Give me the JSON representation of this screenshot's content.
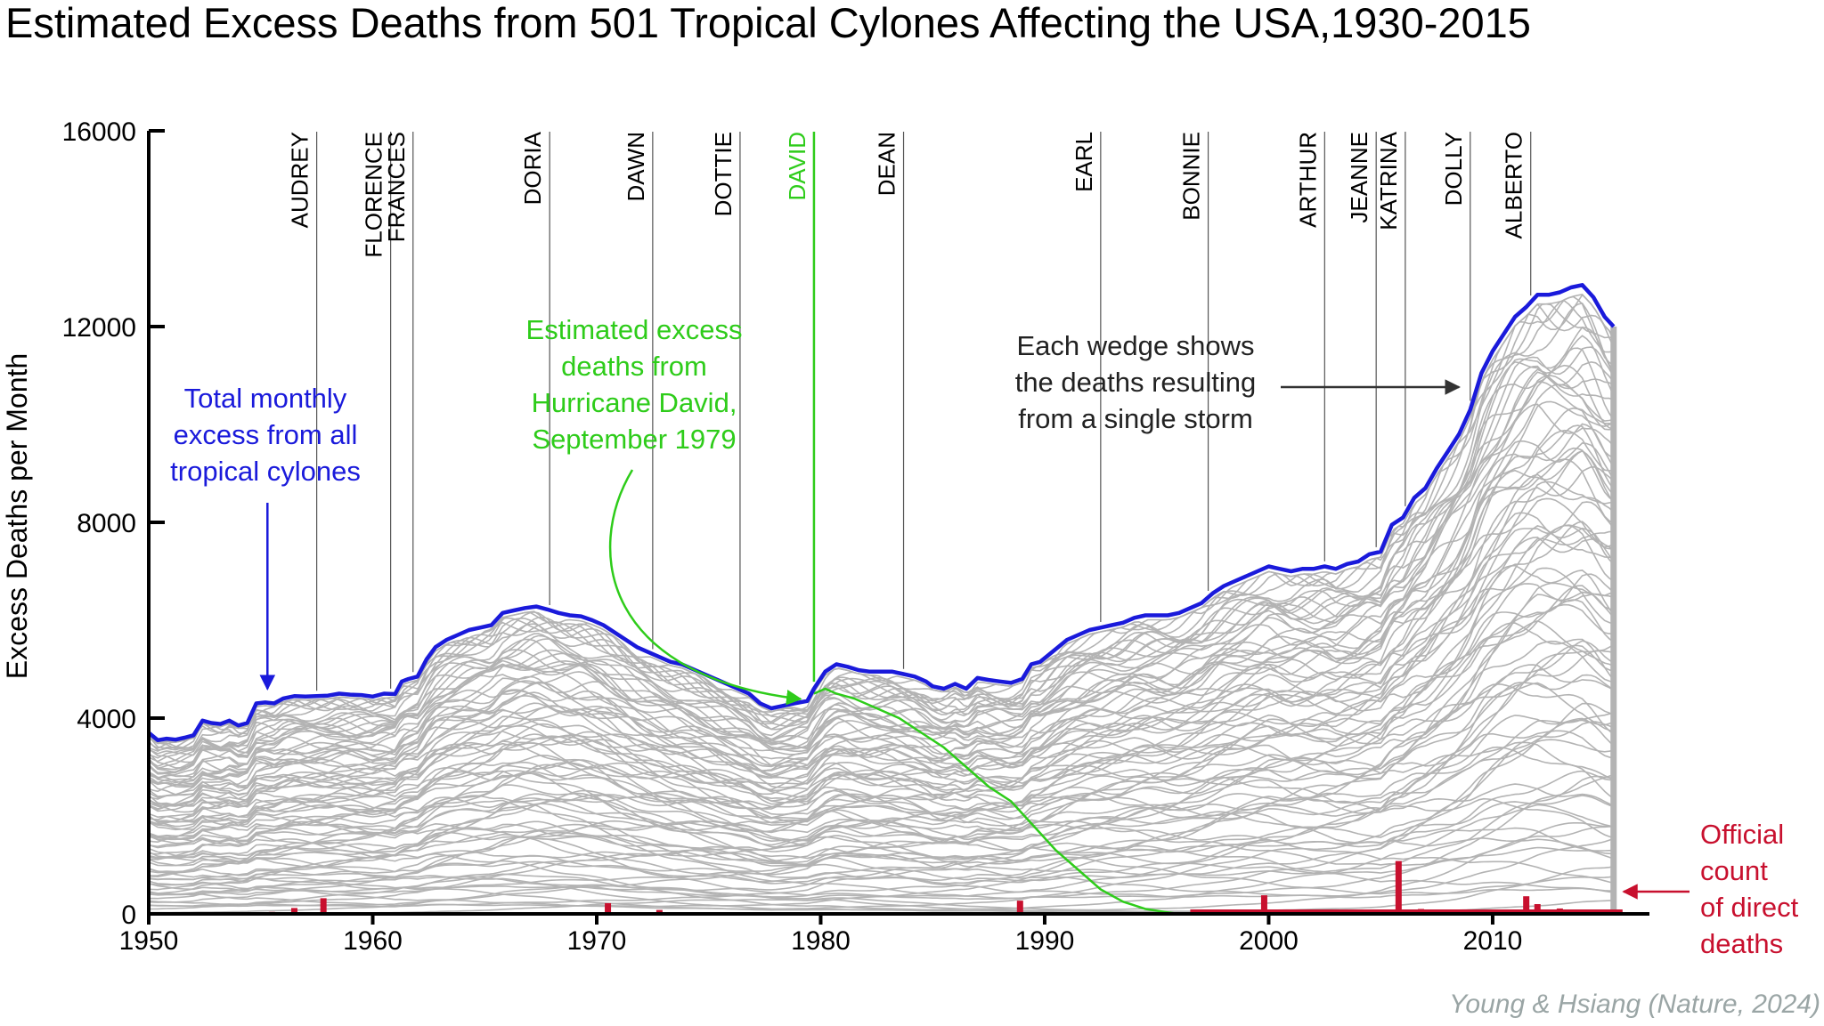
{
  "chart_data": {
    "type": "area",
    "title": "Estimated Excess Deaths from 501 Tropical Cylones Affecting the USA,1930-2015",
    "ylabel": "Excess Deaths per Month",
    "xlabel": "",
    "xlim": [
      1950,
      2017
    ],
    "ylim": [
      0,
      16000
    ],
    "x_ticks": [
      1950,
      1960,
      1970,
      1980,
      1990,
      2000,
      2010
    ],
    "y_ticks": [
      0,
      4000,
      8000,
      12000,
      16000
    ],
    "colors": {
      "total": "#1a1adb",
      "storms": "#b3b3b3",
      "highlight": "#2ecc1a",
      "official": "#c8102e",
      "axis": "#000000",
      "source": "#9aa5a5"
    },
    "series": [
      {
        "name": "Total monthly excess from all tropical cylones",
        "x": [
          1950,
          1950.4,
          1950.8,
          1951.2,
          1951.6,
          1952.0,
          1952.4,
          1952.8,
          1953.2,
          1953.6,
          1954.0,
          1954.4,
          1954.8,
          1955.2,
          1955.6,
          1956.0,
          1956.5,
          1957.0,
          1957.5,
          1958.0,
          1958.5,
          1959.0,
          1959.5,
          1960.0,
          1960.5,
          1961.0,
          1961.3,
          1961.6,
          1962.0,
          1962.4,
          1962.8,
          1963.3,
          1963.8,
          1964.3,
          1964.8,
          1965.3,
          1965.8,
          1966.3,
          1966.8,
          1967.3,
          1967.8,
          1968.3,
          1968.8,
          1969.3,
          1969.8,
          1970.3,
          1970.8,
          1971.3,
          1971.8,
          1972.3,
          1972.8,
          1973.3,
          1973.8,
          1974.3,
          1974.8,
          1975.3,
          1975.8,
          1976.3,
          1976.8,
          1977.3,
          1977.8,
          1978.3,
          1978.8,
          1979.4,
          1979.7,
          1980.2,
          1980.7,
          1981.2,
          1981.7,
          1982.2,
          1982.7,
          1983.2,
          1983.7,
          1984.2,
          1984.7,
          1985.0,
          1985.5,
          1986.0,
          1986.5,
          1987.0,
          1987.5,
          1988.0,
          1988.5,
          1989.0,
          1989.4,
          1989.8,
          1990.2,
          1990.6,
          1991.0,
          1991.5,
          1992.0,
          1992.5,
          1993.0,
          1993.5,
          1994.0,
          1994.5,
          1995.0,
          1995.5,
          1996.0,
          1996.5,
          1997.0,
          1997.5,
          1998.0,
          1998.5,
          1999.0,
          1999.5,
          2000.0,
          2000.5,
          2001.0,
          2001.5,
          2002.0,
          2002.5,
          2003.0,
          2003.5,
          2004.0,
          2004.5,
          2005.0,
          2005.5,
          2006.0,
          2006.5,
          2007.0,
          2007.5,
          2008.0,
          2008.5,
          2009.0,
          2009.5,
          2010.0,
          2010.5,
          2011.0,
          2011.5,
          2012.0,
          2012.5,
          2013.0,
          2013.5,
          2014.0,
          2014.5,
          2015.0,
          2015.4
        ],
        "y": [
          3700,
          3550,
          3580,
          3560,
          3600,
          3650,
          3950,
          3900,
          3880,
          3950,
          3850,
          3900,
          4300,
          4320,
          4300,
          4400,
          4450,
          4440,
          4450,
          4460,
          4500,
          4480,
          4470,
          4440,
          4500,
          4490,
          4750,
          4800,
          4850,
          5200,
          5450,
          5600,
          5700,
          5800,
          5850,
          5900,
          6150,
          6200,
          6250,
          6280,
          6220,
          6150,
          6100,
          6080,
          6000,
          5900,
          5750,
          5600,
          5450,
          5350,
          5250,
          5150,
          5100,
          5000,
          4900,
          4800,
          4700,
          4600,
          4500,
          4300,
          4200,
          4250,
          4300,
          4350,
          4600,
          4950,
          5100,
          5050,
          4980,
          4950,
          4950,
          4950,
          4900,
          4850,
          4750,
          4650,
          4600,
          4700,
          4600,
          4820,
          4780,
          4750,
          4720,
          4800,
          5100,
          5150,
          5300,
          5450,
          5600,
          5700,
          5800,
          5850,
          5900,
          5950,
          6050,
          6100,
          6100,
          6100,
          6150,
          6250,
          6350,
          6550,
          6700,
          6800,
          6900,
          7000,
          7100,
          7050,
          7000,
          7050,
          7050,
          7100,
          7050,
          7150,
          7200,
          7350,
          7400,
          7950,
          8100,
          8500,
          8700,
          9100,
          9450,
          9800,
          10300,
          11050,
          11500,
          11850,
          12200,
          12400,
          12650,
          12650,
          12700,
          12800,
          12850,
          12600,
          12200,
          12000
        ]
      },
      {
        "name": "DAVID",
        "x": [
          1979.7,
          1980.2,
          1980.7,
          1981.5,
          1982.5,
          1983.5,
          1984.5,
          1985.5,
          1986.5,
          1987.5,
          1988.5,
          1989.5,
          1990.5,
          1991.5,
          1992.5,
          1993.5,
          1994.5,
          1995.5,
          1996.0
        ],
        "y": [
          4500,
          4600,
          4500,
          4400,
          4200,
          4000,
          3700,
          3400,
          3000,
          2600,
          2300,
          1800,
          1300,
          900,
          500,
          250,
          100,
          30,
          0
        ]
      },
      {
        "name": "Official count of direct deaths",
        "x": [
          1955.5,
          1956.5,
          1957.8,
          1970.5,
          1972.8,
          1988.9,
          1997.5,
          1998.5,
          1999.8,
          2000.5,
          2002.0,
          2003.5,
          2005.8,
          2006.8,
          2008.0,
          2009.0,
          2010.5,
          2011.5,
          2012.0,
          2013.0,
          2014.0,
          2015.0
        ],
        "y": [
          40,
          120,
          320,
          220,
          80,
          270,
          50,
          60,
          380,
          80,
          60,
          60,
          1080,
          100,
          80,
          60,
          80,
          360,
          200,
          110,
          50,
          40
        ]
      }
    ],
    "storm_labels": [
      {
        "name": "AUDREY",
        "year": 1957.5
      },
      {
        "name": "FLORENCE",
        "year": 1960.8
      },
      {
        "name": "FRANCES",
        "year": 1961.8
      },
      {
        "name": "DORIA",
        "year": 1967.9
      },
      {
        "name": "DAWN",
        "year": 1972.5
      },
      {
        "name": "DOTTIE",
        "year": 1976.4
      },
      {
        "name": "DAVID",
        "year": 1979.7
      },
      {
        "name": "DEAN",
        "year": 1983.7
      },
      {
        "name": "EARL",
        "year": 1992.5
      },
      {
        "name": "BONNIE",
        "year": 1997.3
      },
      {
        "name": "ARTHUR",
        "year": 2002.5
      },
      {
        "name": "JEANNE",
        "year": 2004.8
      },
      {
        "name": "KATRINA",
        "year": 2006.1
      },
      {
        "name": "DOLLY",
        "year": 2009.0
      },
      {
        "name": "ALBERTO",
        "year": 2011.7
      }
    ],
    "annotations": {
      "total": [
        "Total monthly",
        "excess from all",
        "tropical cylones"
      ],
      "david": [
        "Estimated excess",
        "deaths from",
        "Hurricane David,",
        "September 1979"
      ],
      "wedge": [
        "Each wedge shows",
        "the deaths resulting",
        "from a single storm"
      ],
      "official": [
        "Official",
        "count",
        "of direct",
        "deaths"
      ]
    },
    "source": "Young & Hsiang (Nature, 2024)"
  }
}
